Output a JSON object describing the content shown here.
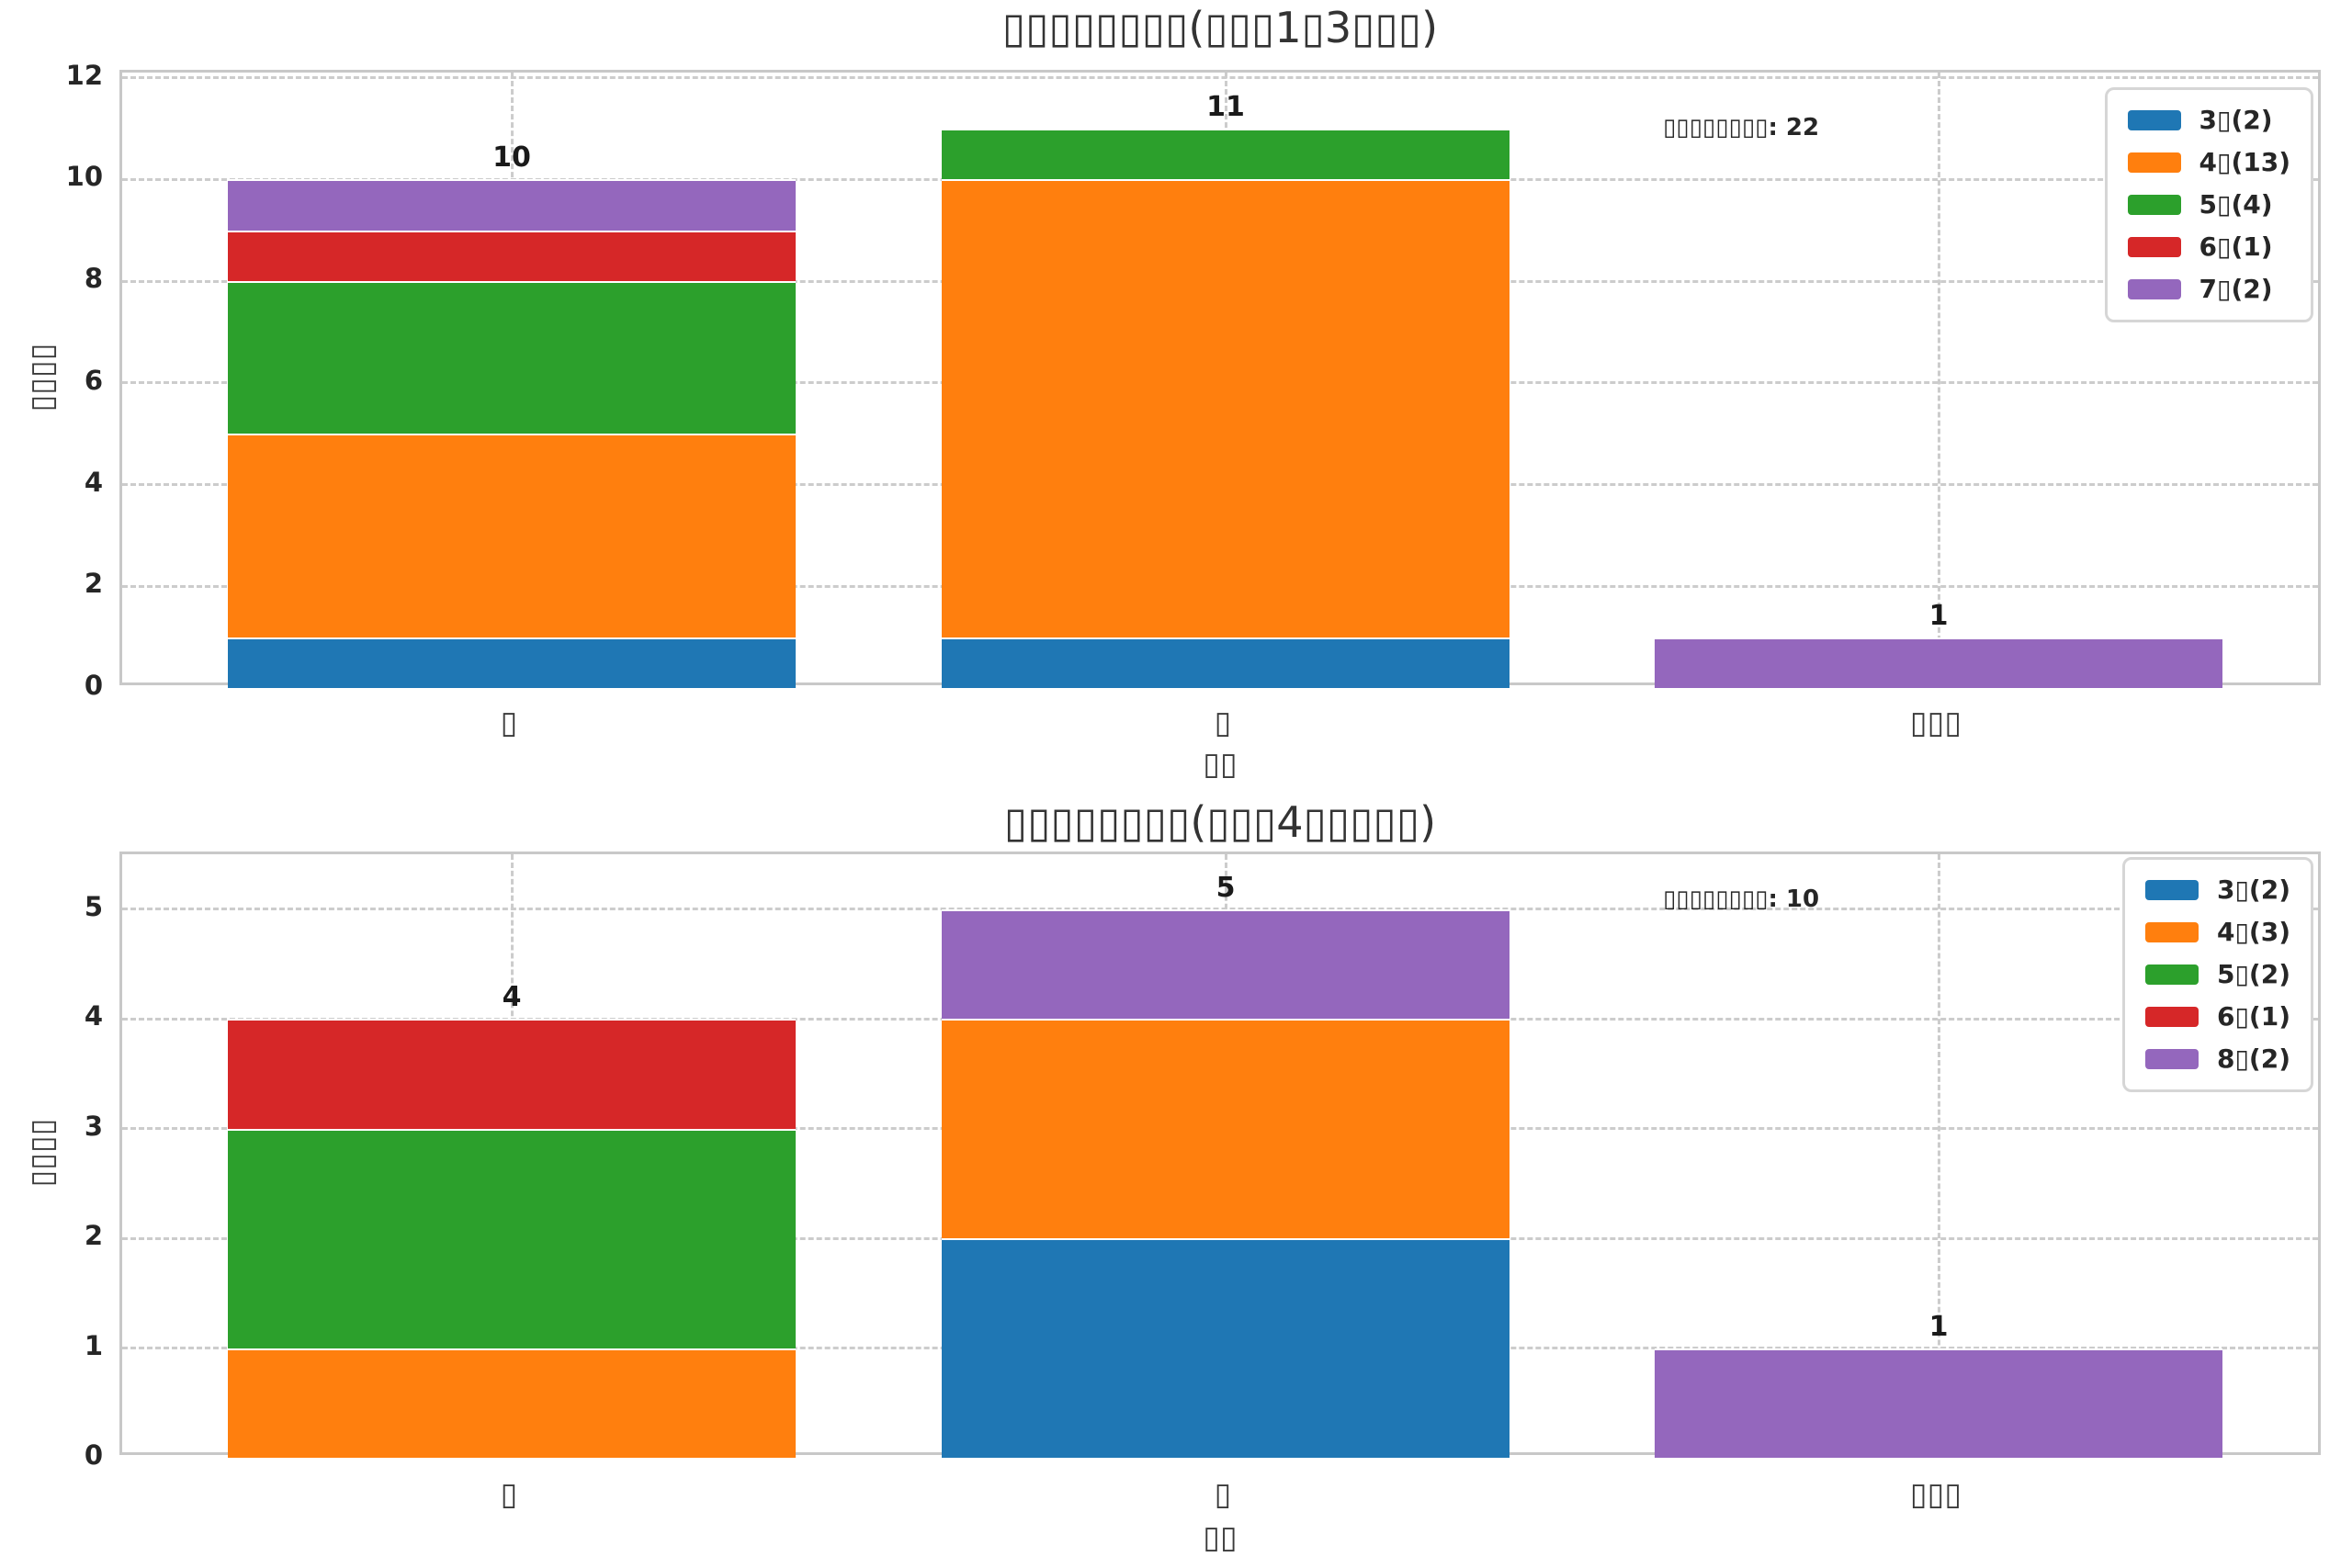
{
  "figure": {
    "background": "#ffffff",
    "text_color": "#262626",
    "grid_color": "#cccccc",
    "spine_color": "#c8c8c8"
  },
  "chart_data": [
    {
      "type": "bar",
      "stacked": true,
      "title": "▯▯▯▯▯▯▯▯(▯▯▯1▯3▯▯▯)",
      "xlabel": "▯▯",
      "ylabel": "▯▯▯▯",
      "categories": [
        "▯",
        "▯",
        "▯▯▯"
      ],
      "series": [
        {
          "name": "3▯(2)",
          "color": "#1f77b4",
          "values": [
            1,
            1,
            0
          ]
        },
        {
          "name": "4▯(13)",
          "color": "#ff7f0e",
          "values": [
            4,
            9,
            0
          ]
        },
        {
          "name": "5▯(4)",
          "color": "#2ca02c",
          "values": [
            3,
            1,
            0
          ]
        },
        {
          "name": "6▯(1)",
          "color": "#d62728",
          "values": [
            1,
            0,
            0
          ]
        },
        {
          "name": "7▯(2)",
          "color": "#9467bd",
          "values": [
            1,
            0,
            1
          ]
        }
      ],
      "totals": [
        10,
        11,
        1
      ],
      "grand_total": 22,
      "annotation": "▯▯▯▯▯▯▯▯: 22",
      "yticks": [
        0,
        2,
        4,
        6,
        8,
        10,
        12
      ],
      "ylim": [
        0,
        12.1
      ],
      "grid": true,
      "legend_position": "upper right"
    },
    {
      "type": "bar",
      "stacked": true,
      "title": "▯▯▯▯▯▯▯▯(▯▯▯4▯▯▯▯▯)",
      "xlabel": "▯▯",
      "ylabel": "▯▯▯▯",
      "categories": [
        "▯",
        "▯",
        "▯▯▯"
      ],
      "series": [
        {
          "name": "3▯(2)",
          "color": "#1f77b4",
          "values": [
            0,
            2,
            0
          ]
        },
        {
          "name": "4▯(3)",
          "color": "#ff7f0e",
          "values": [
            1,
            2,
            0
          ]
        },
        {
          "name": "5▯(2)",
          "color": "#2ca02c",
          "values": [
            2,
            0,
            0
          ]
        },
        {
          "name": "6▯(1)",
          "color": "#d62728",
          "values": [
            1,
            0,
            0
          ]
        },
        {
          "name": "8▯(2)",
          "color": "#9467bd",
          "values": [
            0,
            1,
            1
          ]
        }
      ],
      "totals": [
        4,
        5,
        1
      ],
      "grand_total": 10,
      "annotation": "▯▯▯▯▯▯▯▯: 10",
      "yticks": [
        0,
        1,
        2,
        3,
        4,
        5
      ],
      "ylim": [
        0,
        5.5
      ],
      "grid": true,
      "legend_position": "upper right"
    }
  ]
}
